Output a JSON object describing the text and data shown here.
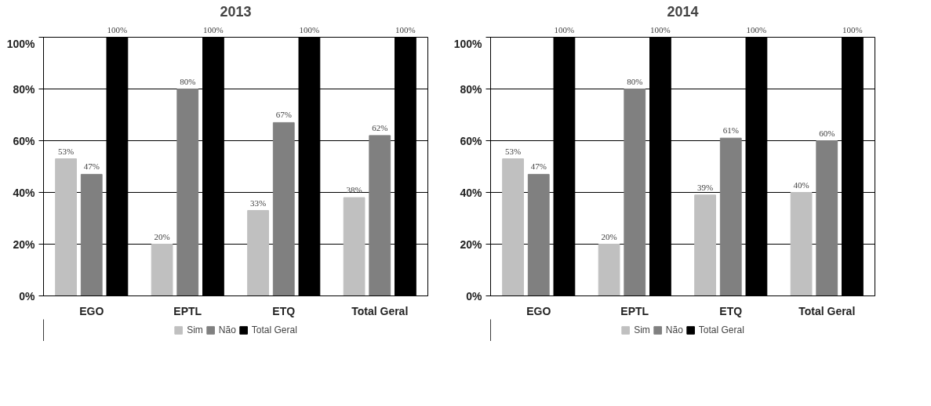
{
  "chart_data": [
    {
      "type": "bar",
      "title": "2013",
      "categories": [
        "EGO",
        "EPTL",
        "ETQ",
        "Total Geral"
      ],
      "ylim": [
        0,
        100
      ],
      "yticks": [
        {
          "value": 0,
          "label": "0%"
        },
        {
          "value": 20,
          "label": "20%"
        },
        {
          "value": 40,
          "label": "40%"
        },
        {
          "value": 60,
          "label": "60%"
        },
        {
          "value": 80,
          "label": "80%"
        },
        {
          "value": 100,
          "label": "100%"
        }
      ],
      "grid": "y",
      "legend": "bottom",
      "series": [
        {
          "name": "Sim",
          "color": "#c0c0c0",
          "values": [
            53,
            20,
            33,
            38
          ],
          "value_labels": [
            "53%",
            "20%",
            "33%",
            "38%"
          ]
        },
        {
          "name": "Não",
          "color": "#808080",
          "values": [
            47,
            80,
            67,
            62
          ],
          "value_labels": [
            "47%",
            "80%",
            "67%",
            "62%"
          ]
        },
        {
          "name": "Total Geral",
          "color": "#000000",
          "values": [
            100,
            100,
            100,
            100
          ],
          "value_labels": [
            "100%",
            "100%",
            "100%",
            "100%"
          ]
        }
      ]
    },
    {
      "type": "bar",
      "title": "2014",
      "categories": [
        "EGO",
        "EPTL",
        "ETQ",
        "Total Geral"
      ],
      "ylim": [
        0,
        100
      ],
      "yticks": [
        {
          "value": 0,
          "label": "0%"
        },
        {
          "value": 20,
          "label": "20%"
        },
        {
          "value": 40,
          "label": "40%"
        },
        {
          "value": 60,
          "label": "60%"
        },
        {
          "value": 80,
          "label": "80%"
        },
        {
          "value": 100,
          "label": "100%"
        }
      ],
      "grid": "y",
      "legend": "bottom",
      "series": [
        {
          "name": "Sim",
          "color": "#c0c0c0",
          "values": [
            53,
            20,
            39,
            40
          ],
          "value_labels": [
            "53%",
            "20%",
            "39%",
            "40%"
          ]
        },
        {
          "name": "Não",
          "color": "#808080",
          "values": [
            47,
            80,
            61,
            60
          ],
          "value_labels": [
            "47%",
            "80%",
            "61%",
            "60%"
          ]
        },
        {
          "name": "Total Geral",
          "color": "#000000",
          "values": [
            100,
            100,
            100,
            100
          ],
          "value_labels": [
            "100%",
            "100%",
            "100%",
            "100%"
          ]
        }
      ]
    }
  ]
}
